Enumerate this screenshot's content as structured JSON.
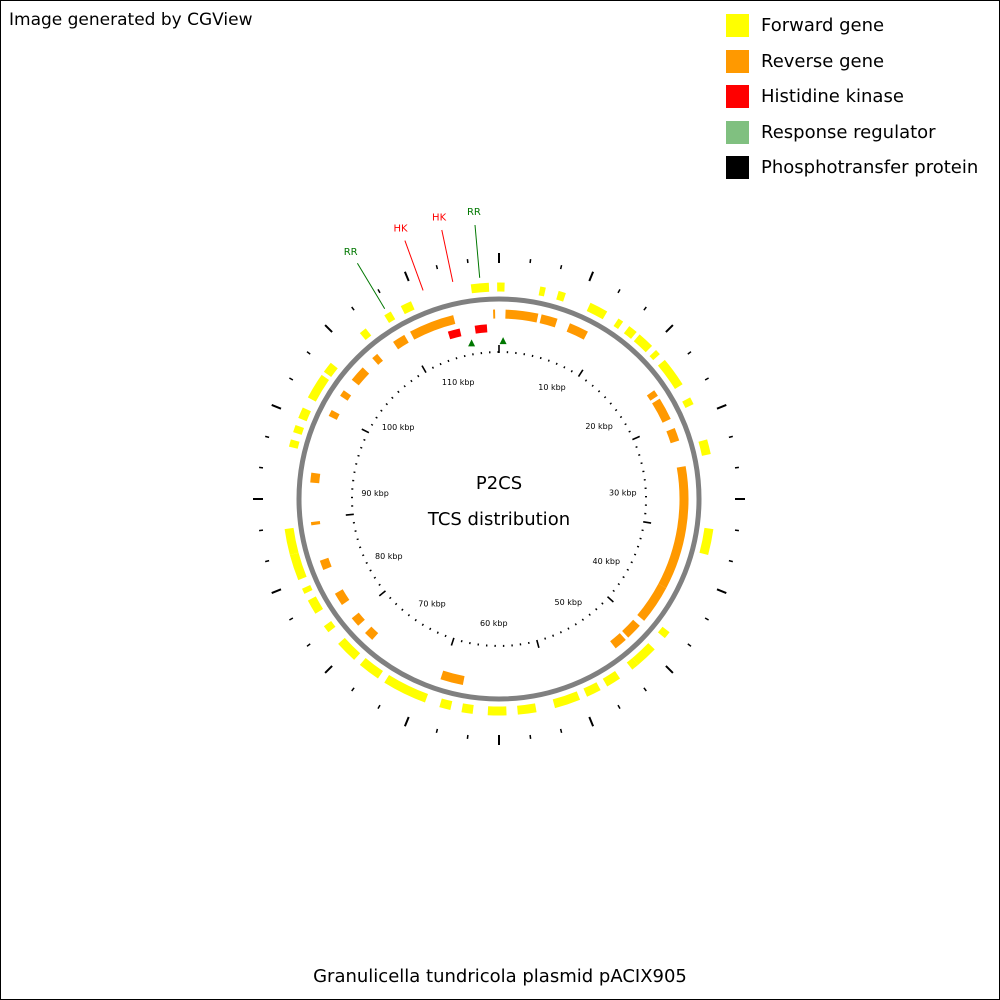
{
  "credit": "Image generated by CGView",
  "footer": "Granulicella tundricola plasmid pACIX905",
  "center": {
    "line1": "P2CS",
    "line2": "TCS distribution"
  },
  "legend": [
    {
      "label": "Forward gene",
      "color": "#ffff00"
    },
    {
      "label": "Reverse gene",
      "color": "#ff9900"
    },
    {
      "label": "Histidine kinase",
      "color": "#ff0000"
    },
    {
      "label": "Response regulator",
      "color": "#80c080"
    },
    {
      "label": "Phosphotransfer protein",
      "color": "#000000"
    }
  ],
  "map": {
    "backbone_color": "#808080",
    "tick_labels": [
      {
        "label": "10 kbp",
        "deg": 25.3
      },
      {
        "label": "20 kbp",
        "deg": 53.8
      },
      {
        "label": "30 kbp",
        "deg": 87.1
      },
      {
        "label": "40 kbp",
        "deg": 120.1
      },
      {
        "label": "50 kbp",
        "deg": 146.0
      },
      {
        "label": "60 kbp",
        "deg": 182.4
      },
      {
        "label": "70 kbp",
        "deg": 212.7
      },
      {
        "label": "80 kbp",
        "deg": 242.7
      },
      {
        "label": "90 kbp",
        "deg": 272.8
      },
      {
        "label": "100 kbp",
        "deg": 305.6
      },
      {
        "label": "110 kbp",
        "deg": 340.8
      }
    ],
    "callouts": [
      {
        "label": "RR",
        "color": "#007700",
        "deg": -31.0
      },
      {
        "label": "HK",
        "color": "#ff0000",
        "deg": -20.0
      },
      {
        "label": "HK",
        "color": "#ff0000",
        "deg": -12.0
      },
      {
        "label": "RR",
        "color": "#007700",
        "deg": -5.0
      }
    ],
    "forward_genes": [
      [
        -7.5,
        -2.7
      ],
      [
        -0.5,
        1.5
      ],
      [
        11,
        12.5
      ],
      [
        16,
        18
      ],
      [
        25,
        30
      ],
      [
        33.5,
        35
      ],
      [
        37,
        39.5
      ],
      [
        40.5,
        45
      ],
      [
        46.5,
        48
      ],
      [
        50,
        58
      ],
      [
        62,
        64
      ],
      [
        74,
        78
      ],
      [
        98,
        105
      ],
      [
        128,
        130
      ],
      [
        134,
        140
      ],
      [
        140,
        142
      ],
      [
        146,
        150
      ],
      [
        152,
        156
      ],
      [
        158,
        165
      ],
      [
        170,
        175
      ],
      [
        178,
        183
      ],
      [
        187,
        190
      ],
      [
        193,
        196
      ],
      [
        200,
        212
      ],
      [
        214,
        220
      ],
      [
        222,
        228
      ],
      [
        232,
        234
      ],
      [
        238,
        242
      ],
      [
        244,
        245.5
      ],
      [
        248,
        255
      ],
      [
        255,
        262
      ],
      [
        284,
        286
      ],
      [
        288,
        290
      ],
      [
        292,
        295
      ],
      [
        298,
        305
      ],
      [
        306,
        309
      ],
      [
        320,
        322
      ],
      [
        328,
        330
      ],
      [
        333,
        336
      ]
    ],
    "reverse_genes": [
      [
        -1.8,
        -1.2
      ],
      [
        2,
        12
      ],
      [
        13,
        18
      ],
      [
        22,
        28
      ],
      [
        55,
        57
      ],
      [
        58,
        65
      ],
      [
        68,
        72
      ],
      [
        80,
        118
      ],
      [
        118,
        130
      ],
      [
        132,
        137
      ],
      [
        138,
        142
      ],
      [
        191,
        198
      ],
      [
        222,
        225
      ],
      [
        228,
        231
      ],
      [
        236,
        240
      ],
      [
        248,
        251
      ],
      [
        262,
        263
      ],
      [
        275,
        278
      ],
      [
        296,
        298
      ],
      [
        303,
        305
      ],
      [
        309,
        314
      ],
      [
        318,
        320
      ],
      [
        326,
        330
      ],
      [
        332,
        346
      ]
    ],
    "histidine_kinases": [
      [
        -17,
        -13
      ],
      [
        -8,
        -4
      ]
    ],
    "response_regulators": [
      -10,
      1.5
    ],
    "phosphotransfer": [
      -18,
      -6,
      2
    ]
  }
}
